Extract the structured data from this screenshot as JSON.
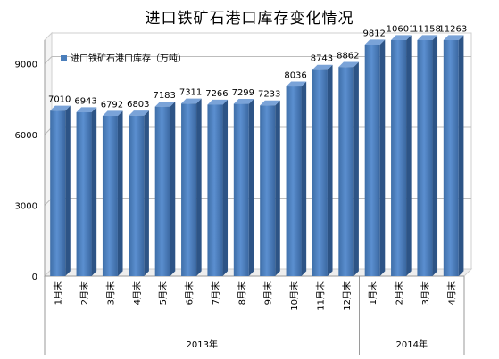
{
  "chart_data": {
    "type": "bar",
    "title": "进口铁矿石港口库存变化情况",
    "legend": {
      "label": "进口铁矿石港口库存（万吨）",
      "position": "top-left"
    },
    "categories": [
      "1月末",
      "2月末",
      "3月末",
      "4月末",
      "5月末",
      "6月末",
      "7月末",
      "8月末",
      "9月末",
      "10月末",
      "11月末",
      "12月末",
      "1月末",
      "2月末",
      "3月末",
      "4月末"
    ],
    "groups": [
      {
        "label": "2013年",
        "count": 12
      },
      {
        "label": "2014年",
        "count": 4
      }
    ],
    "values": [
      7010,
      6943,
      6792,
      6803,
      7183,
      7311,
      7266,
      7299,
      7233,
      8036,
      8743,
      8862,
      9812,
      10601,
      11158,
      11263
    ],
    "yticks": [
      0,
      3000,
      6000,
      9000
    ],
    "ylim": [
      0,
      10000
    ],
    "grid": true,
    "bar_color": "#4a7ebb"
  }
}
